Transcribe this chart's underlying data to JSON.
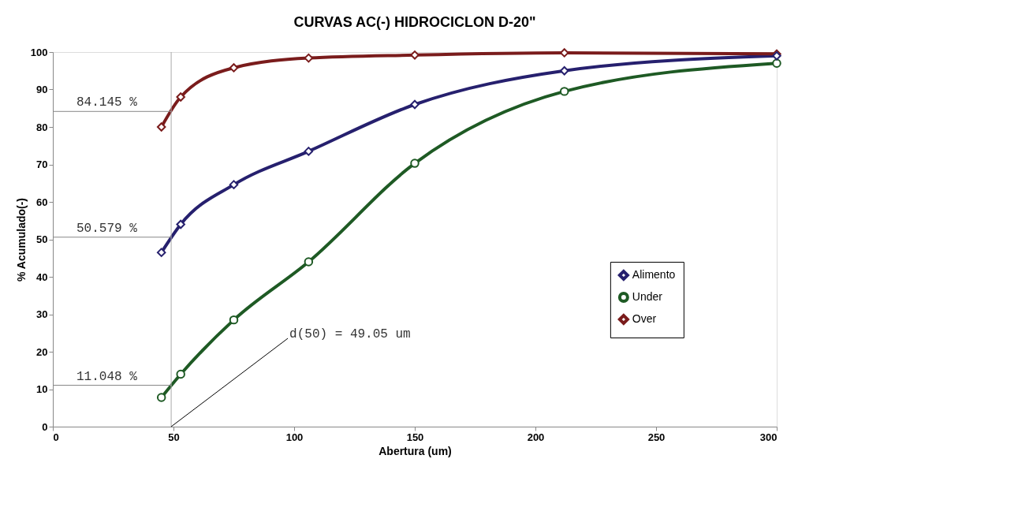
{
  "chart_data": {
    "type": "line",
    "title": "CURVAS AC(-) HIDROCICLON D-20\"",
    "xlabel": "Abertura (um)",
    "ylabel": "% Acumulado(-)",
    "x": [
      45,
      53,
      75,
      106,
      150,
      212,
      300
    ],
    "series": [
      {
        "name": "Alimento",
        "color": "#26206e",
        "marker": "diamond",
        "values": [
          46.5,
          54,
          64.6,
          73.5,
          86,
          95,
          99
        ]
      },
      {
        "name": "Under",
        "color": "#1e5a24",
        "marker": "circle",
        "values": [
          7.8,
          14,
          28.5,
          44,
          70.3,
          89.5,
          97
        ]
      },
      {
        "name": "Over",
        "color": "#7a1c1c",
        "marker": "diamond",
        "values": [
          80,
          88,
          95.8,
          98.4,
          99.2,
          99.8,
          99.5
        ]
      }
    ],
    "xlim": [
      0,
      300
    ],
    "xticks": [
      0,
      50,
      100,
      150,
      200,
      250,
      300
    ],
    "ylim": [
      0,
      100
    ],
    "yticks": [
      0,
      10,
      20,
      30,
      40,
      50,
      60,
      70,
      80,
      90,
      100
    ],
    "ref_lines": [
      {
        "axis": "y",
        "value": 84.145,
        "label": "84.145 %"
      },
      {
        "axis": "y",
        "value": 50.579,
        "label": "50.579 %"
      },
      {
        "axis": "y",
        "value": 11.048,
        "label": "11.048 %"
      },
      {
        "axis": "x",
        "value": 49.05
      }
    ],
    "annotations": [
      {
        "text": "d(50) = 49.05 um",
        "x": 49.05,
        "y": 0
      }
    ],
    "grid": false,
    "legend": "right",
    "line_style": "solid"
  }
}
